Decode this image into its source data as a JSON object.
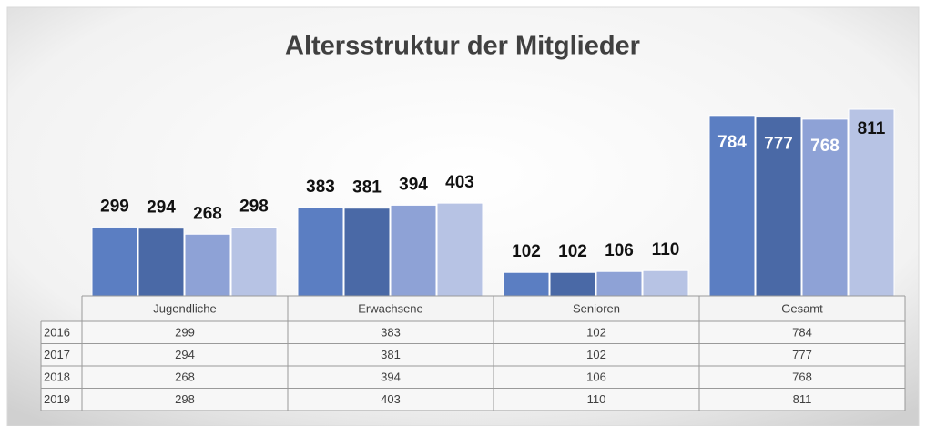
{
  "chart_data": {
    "type": "bar",
    "title": "Altersstruktur der Mitglieder",
    "categories": [
      "Jugendliche",
      "Erwachsene",
      "Senioren",
      "Gesamt"
    ],
    "series": [
      {
        "name": "2016",
        "color": "#5b7ec2",
        "values": [
          299,
          383,
          102,
          784
        ]
      },
      {
        "name": "2017",
        "color": "#4a69a6",
        "values": [
          294,
          381,
          102,
          777
        ]
      },
      {
        "name": "2018",
        "color": "#8ea2d6",
        "values": [
          268,
          394,
          106,
          768
        ]
      },
      {
        "name": "2019",
        "color": "#b7c3e4",
        "values": [
          298,
          403,
          110,
          811
        ]
      }
    ]
  }
}
